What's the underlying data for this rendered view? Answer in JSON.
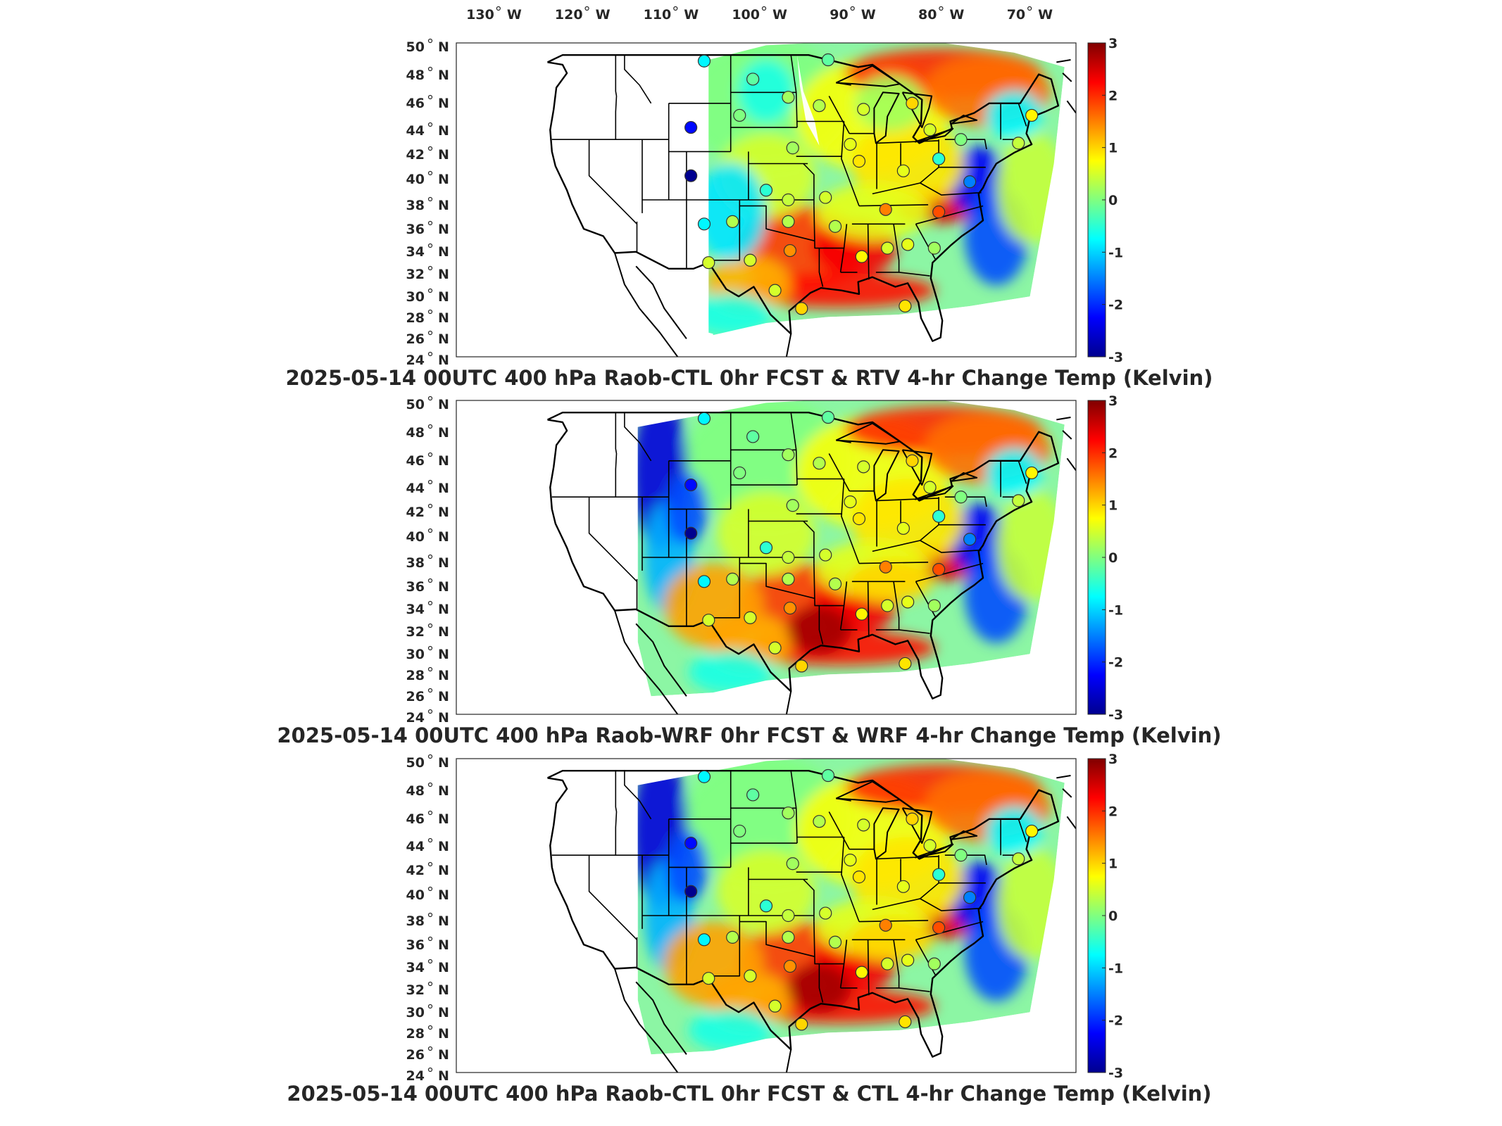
{
  "lon_ticks": [
    {
      "label": "130",
      "suffix": "W"
    },
    {
      "label": "120",
      "suffix": "W"
    },
    {
      "label": "110",
      "suffix": "W"
    },
    {
      "label": "100",
      "suffix": "W"
    },
    {
      "label": "90",
      "suffix": "W"
    },
    {
      "label": "80",
      "suffix": "W"
    },
    {
      "label": "70",
      "suffix": "W"
    }
  ],
  "lat_ticks": [
    {
      "label": "50",
      "suffix": "N"
    },
    {
      "label": "48",
      "suffix": "N"
    },
    {
      "label": "46",
      "suffix": "N"
    },
    {
      "label": "44",
      "suffix": "N"
    },
    {
      "label": "42",
      "suffix": "N"
    },
    {
      "label": "40",
      "suffix": "N"
    },
    {
      "label": "38",
      "suffix": "N"
    },
    {
      "label": "36",
      "suffix": "N"
    },
    {
      "label": "34",
      "suffix": "N"
    },
    {
      "label": "32",
      "suffix": "N"
    },
    {
      "label": "30",
      "suffix": "N"
    },
    {
      "label": "28",
      "suffix": "N"
    },
    {
      "label": "26",
      "suffix": "N"
    },
    {
      "label": "24",
      "suffix": "N"
    }
  ],
  "colorbar": {
    "ticks": [
      "3",
      "2",
      "1",
      "0",
      "-1",
      "-2",
      "-3"
    ],
    "range": [
      -3,
      3
    ],
    "colormap": "jet",
    "colors": [
      "#00008f",
      "#0000ff",
      "#00ffff",
      "#80ff80",
      "#ffff00",
      "#ff0000",
      "#800000"
    ]
  },
  "panels": [
    {
      "title": "2025-05-14 00UTC 400 hPa Raob-CTL 0hr FCST & RTV 4-hr Change Temp (Kelvin)",
      "field_west_lon": -106.5,
      "stations": [
        {
          "lon": -107,
          "lat": 48.5,
          "value": -0.8
        },
        {
          "lon": -108.5,
          "lat": 43.0,
          "value": -2.2
        },
        {
          "lon": -108.5,
          "lat": 39.0,
          "value": -3.0
        },
        {
          "lon": -107,
          "lat": 35.0,
          "value": -0.8
        },
        {
          "lon": -106.5,
          "lat": 31.8,
          "value": 0.5
        },
        {
          "lon": -101.5,
          "lat": 47.0,
          "value": -0.2
        },
        {
          "lon": -97.5,
          "lat": 45.5,
          "value": 0.2
        },
        {
          "lon": -103.0,
          "lat": 44.0,
          "value": 0.0
        },
        {
          "lon": -94.0,
          "lat": 44.8,
          "value": 0.3
        },
        {
          "lon": -89.0,
          "lat": 44.5,
          "value": 0.5
        },
        {
          "lon": -83.5,
          "lat": 45.0,
          "value": 1.0
        },
        {
          "lon": -93.0,
          "lat": 48.6,
          "value": -0.2
        },
        {
          "lon": -97.0,
          "lat": 41.3,
          "value": 0.2
        },
        {
          "lon": -90.5,
          "lat": 41.6,
          "value": 0.6
        },
        {
          "lon": -89.5,
          "lat": 40.2,
          "value": 0.9
        },
        {
          "lon": -84.5,
          "lat": 39.4,
          "value": 0.6
        },
        {
          "lon": -81.5,
          "lat": 42.8,
          "value": 0.5
        },
        {
          "lon": -78.0,
          "lat": 42.0,
          "value": 0.0
        },
        {
          "lon": -80.5,
          "lat": 40.4,
          "value": -0.5
        },
        {
          "lon": -77.0,
          "lat": 38.5,
          "value": -1.5
        },
        {
          "lon": -100.0,
          "lat": 37.8,
          "value": -0.5
        },
        {
          "lon": -97.5,
          "lat": 37.0,
          "value": 0.4
        },
        {
          "lon": -93.3,
          "lat": 37.2,
          "value": 0.5
        },
        {
          "lon": -86.5,
          "lat": 36.2,
          "value": 1.5
        },
        {
          "lon": -80.5,
          "lat": 36.0,
          "value": 1.8
        },
        {
          "lon": -103.8,
          "lat": 35.2,
          "value": 0.3
        },
        {
          "lon": -97.5,
          "lat": 35.2,
          "value": 0.3
        },
        {
          "lon": -92.2,
          "lat": 34.8,
          "value": 0.3
        },
        {
          "lon": -101.8,
          "lat": 32.0,
          "value": 0.5
        },
        {
          "lon": -97.3,
          "lat": 32.8,
          "value": 1.4
        },
        {
          "lon": -89.2,
          "lat": 32.3,
          "value": 0.8
        },
        {
          "lon": -86.3,
          "lat": 33.0,
          "value": 0.5
        },
        {
          "lon": -84.0,
          "lat": 33.3,
          "value": 0.6
        },
        {
          "lon": -81.0,
          "lat": 33.0,
          "value": 0.2
        },
        {
          "lon": -99.0,
          "lat": 29.5,
          "value": 0.5
        },
        {
          "lon": -96.0,
          "lat": 28.0,
          "value": 1.0
        },
        {
          "lon": -84.3,
          "lat": 28.2,
          "value": 0.9
        },
        {
          "lon": -71.5,
          "lat": 41.7,
          "value": 0.4
        },
        {
          "lon": -70.0,
          "lat": 44.0,
          "value": 0.8
        }
      ]
    },
    {
      "title": "2025-05-14 00UTC 400 hPa Raob-WRF 0hr FCST & WRF 4-hr Change Temp (Kelvin)",
      "field_west_lon": -114.5,
      "stations": [
        {
          "lon": -107,
          "lat": 48.5,
          "value": -0.8
        },
        {
          "lon": -108.5,
          "lat": 43.0,
          "value": -2.2
        },
        {
          "lon": -108.5,
          "lat": 39.0,
          "value": -3.0
        },
        {
          "lon": -107,
          "lat": 35.0,
          "value": -0.8
        },
        {
          "lon": -106.5,
          "lat": 31.8,
          "value": 0.5
        },
        {
          "lon": -101.5,
          "lat": 47.0,
          "value": -0.2
        },
        {
          "lon": -97.5,
          "lat": 45.5,
          "value": 0.2
        },
        {
          "lon": -103.0,
          "lat": 44.0,
          "value": 0.0
        },
        {
          "lon": -94.0,
          "lat": 44.8,
          "value": 0.3
        },
        {
          "lon": -89.0,
          "lat": 44.5,
          "value": 0.5
        },
        {
          "lon": -83.5,
          "lat": 45.0,
          "value": 1.0
        },
        {
          "lon": -93.0,
          "lat": 48.6,
          "value": -0.2
        },
        {
          "lon": -97.0,
          "lat": 41.3,
          "value": 0.2
        },
        {
          "lon": -90.5,
          "lat": 41.6,
          "value": 0.6
        },
        {
          "lon": -89.5,
          "lat": 40.2,
          "value": 0.9
        },
        {
          "lon": -84.5,
          "lat": 39.4,
          "value": 0.6
        },
        {
          "lon": -81.5,
          "lat": 42.8,
          "value": 0.5
        },
        {
          "lon": -78.0,
          "lat": 42.0,
          "value": 0.0
        },
        {
          "lon": -80.5,
          "lat": 40.4,
          "value": -0.5
        },
        {
          "lon": -77.0,
          "lat": 38.5,
          "value": -1.5
        },
        {
          "lon": -100.0,
          "lat": 37.8,
          "value": -0.5
        },
        {
          "lon": -97.5,
          "lat": 37.0,
          "value": 0.4
        },
        {
          "lon": -93.3,
          "lat": 37.2,
          "value": 0.5
        },
        {
          "lon": -86.5,
          "lat": 36.2,
          "value": 1.5
        },
        {
          "lon": -80.5,
          "lat": 36.0,
          "value": 1.8
        },
        {
          "lon": -103.8,
          "lat": 35.2,
          "value": 0.3
        },
        {
          "lon": -97.5,
          "lat": 35.2,
          "value": 0.3
        },
        {
          "lon": -92.2,
          "lat": 34.8,
          "value": 0.3
        },
        {
          "lon": -101.8,
          "lat": 32.0,
          "value": 0.5
        },
        {
          "lon": -97.3,
          "lat": 32.8,
          "value": 1.4
        },
        {
          "lon": -89.2,
          "lat": 32.3,
          "value": 0.8
        },
        {
          "lon": -86.3,
          "lat": 33.0,
          "value": 0.5
        },
        {
          "lon": -84.0,
          "lat": 33.3,
          "value": 0.6
        },
        {
          "lon": -81.0,
          "lat": 33.0,
          "value": 0.2
        },
        {
          "lon": -99.0,
          "lat": 29.5,
          "value": 0.5
        },
        {
          "lon": -96.0,
          "lat": 28.0,
          "value": 1.0
        },
        {
          "lon": -84.3,
          "lat": 28.2,
          "value": 0.9
        },
        {
          "lon": -71.5,
          "lat": 41.7,
          "value": 0.4
        },
        {
          "lon": -70.0,
          "lat": 44.0,
          "value": 0.8
        }
      ]
    },
    {
      "title": "2025-05-14 00UTC 400 hPa Raob-CTL 0hr FCST & CTL 4-hr Change Temp (Kelvin)",
      "field_west_lon": -114.5,
      "stations": [
        {
          "lon": -107,
          "lat": 48.5,
          "value": -0.8
        },
        {
          "lon": -108.5,
          "lat": 43.0,
          "value": -2.2
        },
        {
          "lon": -108.5,
          "lat": 39.0,
          "value": -3.0
        },
        {
          "lon": -107,
          "lat": 35.0,
          "value": -0.8
        },
        {
          "lon": -106.5,
          "lat": 31.8,
          "value": 0.5
        },
        {
          "lon": -101.5,
          "lat": 47.0,
          "value": -0.2
        },
        {
          "lon": -97.5,
          "lat": 45.5,
          "value": 0.2
        },
        {
          "lon": -103.0,
          "lat": 44.0,
          "value": 0.0
        },
        {
          "lon": -94.0,
          "lat": 44.8,
          "value": 0.3
        },
        {
          "lon": -89.0,
          "lat": 44.5,
          "value": 0.5
        },
        {
          "lon": -83.5,
          "lat": 45.0,
          "value": 1.0
        },
        {
          "lon": -93.0,
          "lat": 48.6,
          "value": -0.2
        },
        {
          "lon": -97.0,
          "lat": 41.3,
          "value": 0.2
        },
        {
          "lon": -90.5,
          "lat": 41.6,
          "value": 0.6
        },
        {
          "lon": -89.5,
          "lat": 40.2,
          "value": 0.9
        },
        {
          "lon": -84.5,
          "lat": 39.4,
          "value": 0.6
        },
        {
          "lon": -81.5,
          "lat": 42.8,
          "value": 0.5
        },
        {
          "lon": -78.0,
          "lat": 42.0,
          "value": 0.0
        },
        {
          "lon": -80.5,
          "lat": 40.4,
          "value": -0.5
        },
        {
          "lon": -77.0,
          "lat": 38.5,
          "value": -1.5
        },
        {
          "lon": -100.0,
          "lat": 37.8,
          "value": -0.5
        },
        {
          "lon": -97.5,
          "lat": 37.0,
          "value": 0.4
        },
        {
          "lon": -93.3,
          "lat": 37.2,
          "value": 0.5
        },
        {
          "lon": -86.5,
          "lat": 36.2,
          "value": 1.5
        },
        {
          "lon": -80.5,
          "lat": 36.0,
          "value": 1.8
        },
        {
          "lon": -103.8,
          "lat": 35.2,
          "value": 0.3
        },
        {
          "lon": -97.5,
          "lat": 35.2,
          "value": 0.3
        },
        {
          "lon": -92.2,
          "lat": 34.8,
          "value": 0.3
        },
        {
          "lon": -101.8,
          "lat": 32.0,
          "value": 0.5
        },
        {
          "lon": -97.3,
          "lat": 32.8,
          "value": 1.4
        },
        {
          "lon": -89.2,
          "lat": 32.3,
          "value": 0.8
        },
        {
          "lon": -86.3,
          "lat": 33.0,
          "value": 0.5
        },
        {
          "lon": -84.0,
          "lat": 33.3,
          "value": 0.6
        },
        {
          "lon": -81.0,
          "lat": 33.0,
          "value": 0.2
        },
        {
          "lon": -99.0,
          "lat": 29.5,
          "value": 0.5
        },
        {
          "lon": -96.0,
          "lat": 28.0,
          "value": 1.0
        },
        {
          "lon": -84.3,
          "lat": 28.2,
          "value": 0.9
        },
        {
          "lon": -71.5,
          "lat": 41.7,
          "value": 0.4
        },
        {
          "lon": -70.0,
          "lat": 44.0,
          "value": 0.8
        }
      ]
    }
  ]
}
